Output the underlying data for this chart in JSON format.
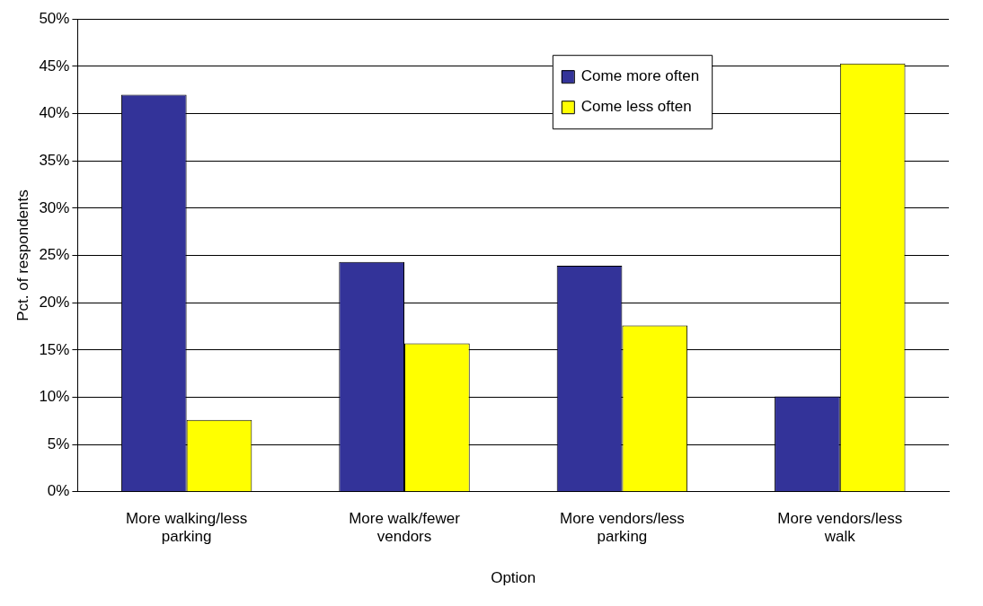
{
  "chart_data": {
    "type": "bar",
    "xlabel": "Option",
    "ylabel": "Pct. of respondents",
    "categories": [
      "More walking/less parking",
      "More walk/fewer vendors",
      "More vendors/less parking",
      "More vendors/less walk"
    ],
    "series": [
      {
        "name": "Come more often",
        "color": "#333399",
        "values": [
          42.0,
          24.3,
          23.9,
          10.1
        ]
      },
      {
        "name": "Come less often",
        "color": "#ffff00",
        "values": [
          7.6,
          15.7,
          17.6,
          45.3
        ]
      }
    ],
    "ylim": [
      0,
      50
    ],
    "yticks": [
      {
        "value": 0,
        "label": "0%"
      },
      {
        "value": 5,
        "label": "5%"
      },
      {
        "value": 10,
        "label": "10%"
      },
      {
        "value": 15,
        "label": "15%"
      },
      {
        "value": 20,
        "label": "20%"
      },
      {
        "value": 25,
        "label": "25%"
      },
      {
        "value": 30,
        "label": "30%"
      },
      {
        "value": 35,
        "label": "35%"
      },
      {
        "value": 40,
        "label": "40%"
      },
      {
        "value": 45,
        "label": "45%"
      },
      {
        "value": 50,
        "label": "50%"
      }
    ],
    "grid": "y",
    "legend": "top right"
  }
}
